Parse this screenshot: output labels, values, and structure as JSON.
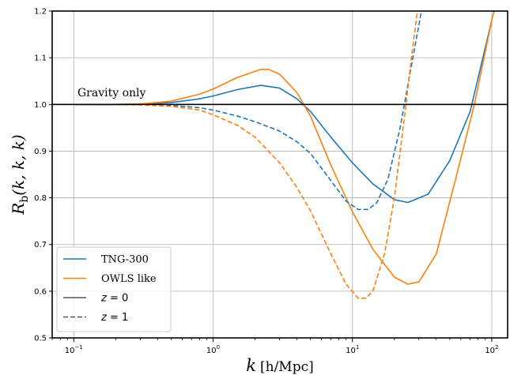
{
  "chart_data": {
    "type": "line",
    "xscale": "log",
    "xlim": [
      0.07,
      130
    ],
    "ylim": [
      0.5,
      1.2
    ],
    "grid": true,
    "xlabel_italic": "k",
    "xlabel_units": "[h/Mpc]",
    "ylabel": "R_b(k, k, k)",
    "yticks": [
      "0.5",
      "0.6",
      "0.7",
      "0.8",
      "0.9",
      "1.0",
      "1.1",
      "1.2"
    ],
    "xticks": [
      {
        "value": 0.1,
        "base": "10",
        "exp": "−1"
      },
      {
        "value": 1,
        "base": "10",
        "exp": "0"
      },
      {
        "value": 10,
        "base": "10",
        "exp": "1"
      },
      {
        "value": 100,
        "base": "10",
        "exp": "2"
      }
    ],
    "reference_line": {
      "y": 1.0,
      "label": "Gravity only",
      "color": "#000000"
    },
    "legend": {
      "placement": "lower-left",
      "entries": [
        {
          "label": "TNG-300",
          "color": "#1f77b4",
          "dashed": false
        },
        {
          "label": "OWLS like",
          "color": "#ff7f0e",
          "dashed": false
        },
        {
          "label": "z = 0",
          "color": "#555555",
          "dashed": false,
          "math_var": "z",
          "math_rest": " = 0"
        },
        {
          "label": "z = 1",
          "color": "#555555",
          "dashed": true,
          "math_var": "z",
          "math_rest": " = 1"
        }
      ]
    },
    "series": [
      {
        "name": "TNG-300",
        "redshift": 0,
        "color": "#1f77b4",
        "dashed": false,
        "x": [
          0.1,
          0.2,
          0.3,
          0.5,
          0.8,
          1.0,
          1.5,
          2.2,
          3.0,
          4.0,
          5.0,
          7.0,
          10.0,
          14.0,
          20.0,
          25.0,
          35.0,
          50.0,
          70.0,
          100.0
        ],
        "y": [
          1.0,
          1.0,
          1.001,
          1.004,
          1.012,
          1.018,
          1.032,
          1.041,
          1.035,
          1.012,
          0.985,
          0.93,
          0.875,
          0.83,
          0.796,
          0.79,
          0.808,
          0.88,
          0.985,
          1.18
        ]
      },
      {
        "name": "OWLS like",
        "redshift": 0,
        "color": "#ff7f0e",
        "dashed": false,
        "x": [
          0.1,
          0.2,
          0.3,
          0.5,
          0.8,
          1.0,
          1.5,
          2.2,
          2.5,
          3.0,
          4.0,
          5.0,
          7.0,
          10.0,
          14.0,
          20.0,
          25.0,
          30.0,
          40.0,
          55.0,
          75.0,
          100.0,
          110.0
        ],
        "y": [
          1.0,
          1.0,
          1.001,
          1.007,
          1.022,
          1.033,
          1.058,
          1.075,
          1.075,
          1.065,
          1.025,
          0.975,
          0.87,
          0.77,
          0.69,
          0.63,
          0.615,
          0.62,
          0.68,
          0.84,
          1.0,
          1.18,
          1.23
        ]
      },
      {
        "name": "TNG-300",
        "redshift": 1,
        "color": "#1f77b4",
        "dashed": true,
        "x": [
          0.1,
          0.3,
          0.5,
          0.8,
          1.0,
          1.5,
          2.0,
          3.0,
          4.0,
          5.0,
          7.0,
          9.0,
          11.0,
          13.0,
          15.0,
          18.0,
          22.0,
          26.0,
          30.0,
          32.0
        ],
        "y": [
          1.0,
          1.0,
          0.998,
          0.993,
          0.988,
          0.975,
          0.963,
          0.943,
          0.92,
          0.895,
          0.837,
          0.793,
          0.775,
          0.775,
          0.79,
          0.84,
          0.95,
          1.07,
          1.17,
          1.22
        ]
      },
      {
        "name": "OWLS like",
        "redshift": 1,
        "color": "#ff7f0e",
        "dashed": true,
        "x": [
          0.1,
          0.3,
          0.5,
          0.8,
          1.0,
          1.5,
          2.0,
          3.0,
          4.0,
          5.0,
          7.0,
          9.0,
          11.0,
          12.5,
          14.0,
          17.0,
          20.0,
          24.0,
          27.0,
          29.0,
          30.0
        ],
        "y": [
          1.0,
          0.999,
          0.996,
          0.988,
          0.978,
          0.955,
          0.93,
          0.875,
          0.822,
          0.772,
          0.68,
          0.615,
          0.585,
          0.585,
          0.6,
          0.68,
          0.8,
          0.99,
          1.12,
          1.19,
          1.22
        ]
      }
    ]
  }
}
